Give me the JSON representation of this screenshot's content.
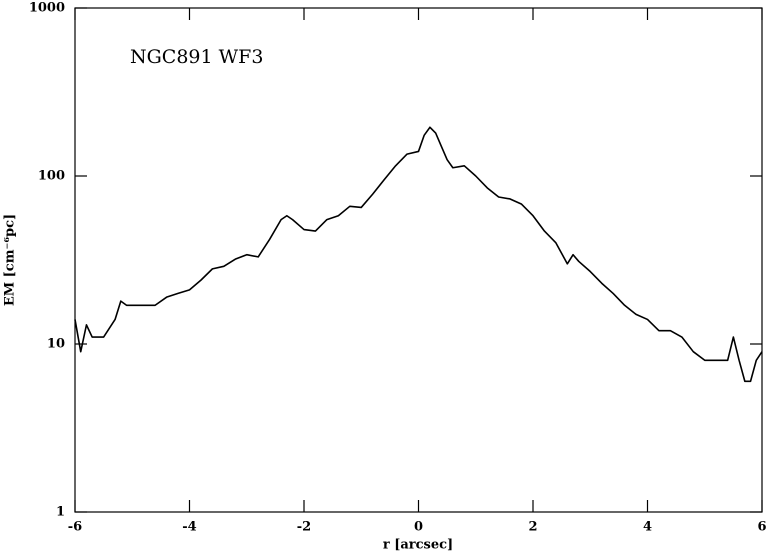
{
  "chart_data": {
    "type": "line",
    "annotation": "NGC891  WF3",
    "xlabel": "r [arcsec]",
    "ylabel": "EM [cm⁻⁶pc]",
    "log_y": true,
    "color": "#000000",
    "xlim": [
      -6,
      6
    ],
    "xticks": [
      -6,
      -4,
      -2,
      0,
      2,
      4,
      6
    ],
    "ylim": [
      1,
      1000
    ],
    "yticks": [
      1,
      10,
      100,
      1000
    ],
    "x": [
      -6.0,
      -5.9,
      -5.8,
      -5.7,
      -5.5,
      -5.3,
      -5.2,
      -5.1,
      -5.0,
      -4.8,
      -4.6,
      -4.4,
      -4.2,
      -4.0,
      -3.8,
      -3.6,
      -3.4,
      -3.2,
      -3.0,
      -2.8,
      -2.6,
      -2.4,
      -2.3,
      -2.2,
      -2.0,
      -1.8,
      -1.6,
      -1.4,
      -1.2,
      -1.0,
      -0.8,
      -0.6,
      -0.4,
      -0.2,
      0.0,
      0.1,
      0.2,
      0.3,
      0.4,
      0.5,
      0.6,
      0.8,
      1.0,
      1.2,
      1.4,
      1.6,
      1.8,
      2.0,
      2.2,
      2.4,
      2.6,
      2.7,
      2.8,
      3.0,
      3.2,
      3.4,
      3.6,
      3.8,
      4.0,
      4.2,
      4.4,
      4.6,
      4.8,
      5.0,
      5.2,
      5.4,
      5.5,
      5.6,
      5.7,
      5.8,
      5.9,
      6.0
    ],
    "values": [
      14,
      9,
      13,
      11,
      11,
      14,
      18,
      17,
      17,
      17,
      17,
      19,
      20,
      21,
      24,
      28,
      29,
      32,
      34,
      33,
      42,
      55,
      58,
      55,
      48,
      47,
      55,
      58,
      66,
      65,
      78,
      95,
      115,
      135,
      140,
      175,
      195,
      180,
      150,
      125,
      112,
      115,
      100,
      85,
      75,
      73,
      68,
      58,
      47,
      40,
      30,
      34,
      31,
      27,
      23,
      20,
      17,
      15,
      14,
      12,
      12,
      11,
      9,
      8,
      8,
      8,
      11,
      8,
      6,
      6,
      8,
      9
    ]
  }
}
